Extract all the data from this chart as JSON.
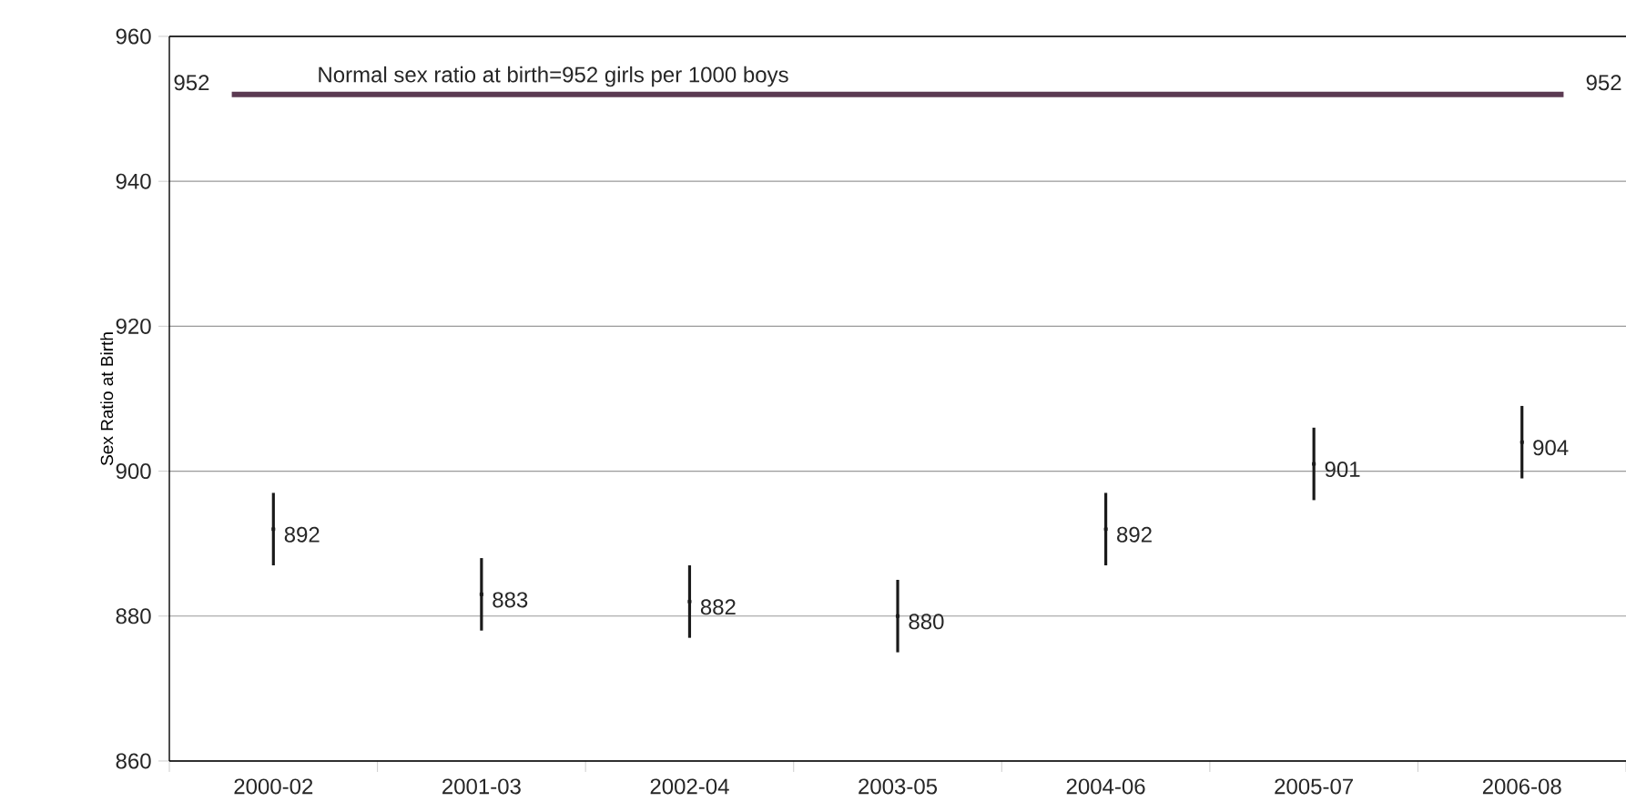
{
  "chart_data": {
    "type": "scatter",
    "ylabel": "Sex Ratio at Birth",
    "categories": [
      "2000-02",
      "2001-03",
      "2002-04",
      "2003-05",
      "2004-06",
      "2005-07",
      "2006-08"
    ],
    "series": [
      {
        "color": "#1a1a1a",
        "values": [
          892,
          883,
          882,
          880,
          892,
          901,
          904
        ],
        "errors": [
          5,
          5,
          5,
          5,
          5,
          5,
          5
        ]
      }
    ],
    "marker": "square",
    "data_labels": true,
    "grid": "y",
    "ylim": [
      860,
      960
    ],
    "yticks": [
      860,
      880,
      900,
      920,
      940,
      960
    ],
    "ref_lines": [
      {
        "axis": "y",
        "value": 952,
        "label": "Normal sex ratio at birth=952 girls per 1000 boys",
        "color": "#5b3a52"
      }
    ],
    "annotations": [
      "952",
      "952"
    ]
  }
}
